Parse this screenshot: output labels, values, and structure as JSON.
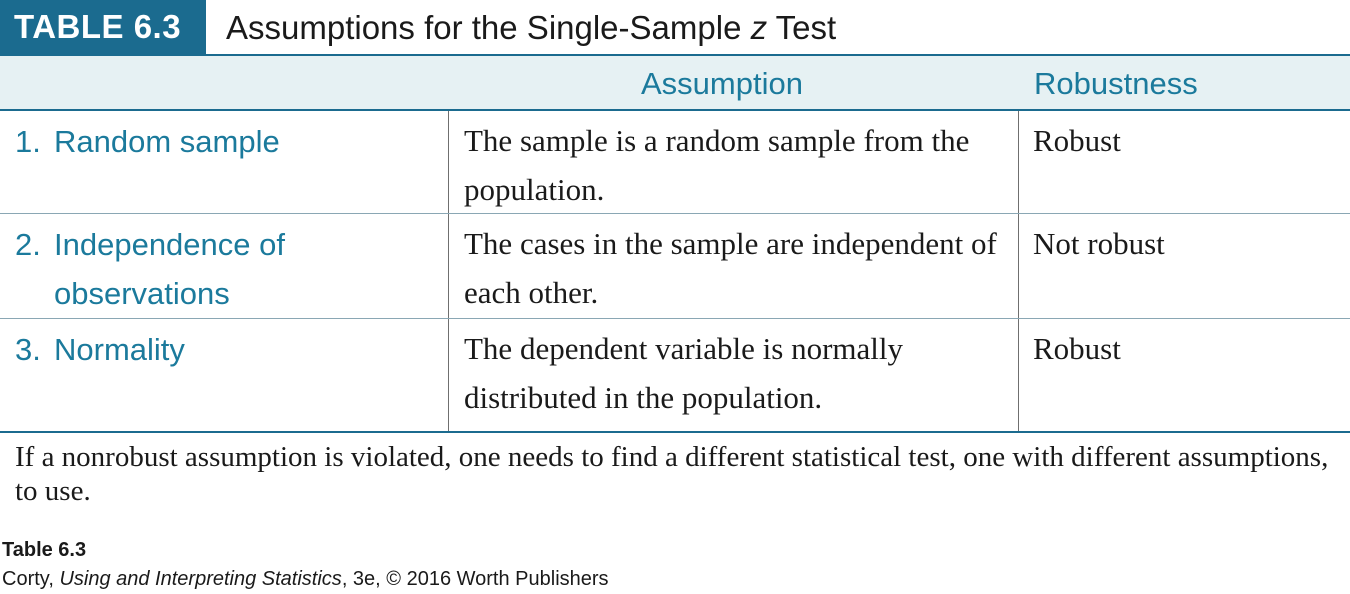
{
  "header": {
    "tag": "TABLE 6.3",
    "title_part1": "Assumptions for the Single-Sample ",
    "title_italic": "z",
    "title_part2": " Test"
  },
  "columns": {
    "assumption": "Assumption",
    "robustness": "Robustness"
  },
  "rows": [
    {
      "num": "1.",
      "label_line1": "Random sample",
      "label_line2": "",
      "assumption": "The sample is a random sample from the population.",
      "robustness": "Robust"
    },
    {
      "num": "2.",
      "label_line1": "Independence of",
      "label_line2": "observations",
      "assumption": "The cases in the sample are independent of each other.",
      "robustness": "Not robust"
    },
    {
      "num": "3.",
      "label_line1": "Normality",
      "label_line2": "",
      "assumption": "The dependent variable is normally distributed in the population.",
      "robustness": "Robust"
    }
  ],
  "note": "If a nonrobust assumption is violated, one needs to find a different statistical test, one with different assumptions, to use.",
  "caption": {
    "title": "Table 6.3",
    "author": "Corty",
    "book": "Using and Interpreting Statistics",
    "rest": ", 3e, © 2016 Worth Publishers",
    "sep": ", "
  },
  "colors": {
    "accent": "#1b6b8f",
    "label": "#1b7a9c",
    "header_band": "#e6f1f3"
  }
}
